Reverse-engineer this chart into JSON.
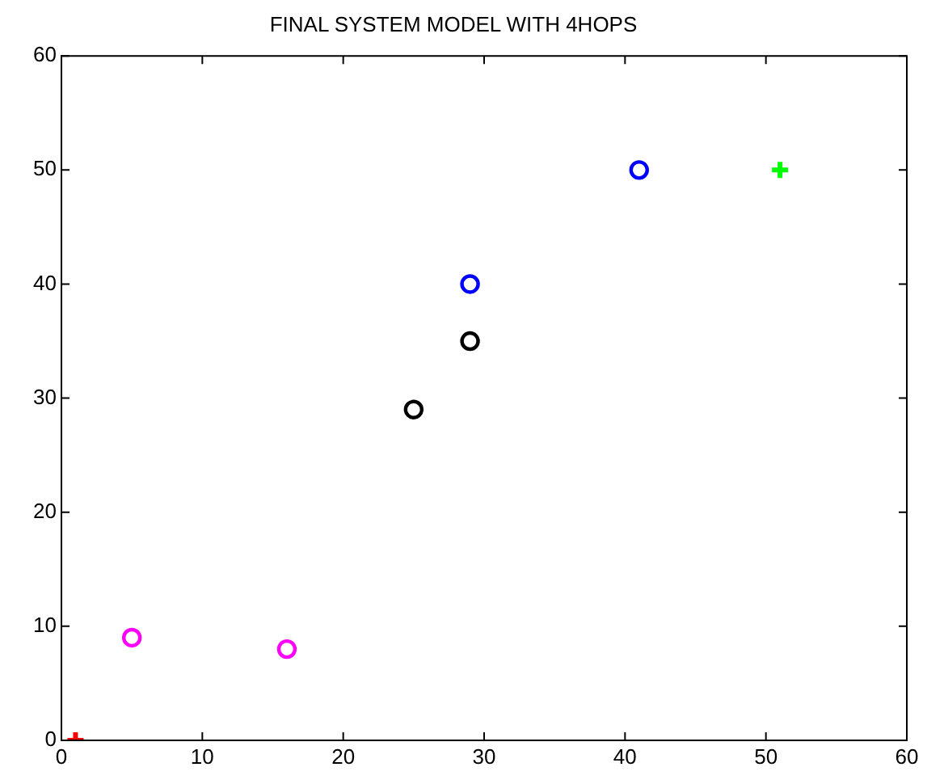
{
  "chart_data": {
    "type": "scatter",
    "title": "FINAL SYSTEM MODEL WITH 4HOPS",
    "xlim": [
      0,
      60
    ],
    "xticks": [
      0,
      10,
      20,
      30,
      40,
      50,
      60
    ],
    "ylim": [
      0,
      60
    ],
    "yticks": [
      0,
      10,
      20,
      30,
      40,
      50,
      60
    ],
    "grid": false,
    "legend": false,
    "series": [
      {
        "color": "#ff0000",
        "marker": "cross",
        "x": [
          1
        ],
        "values": [
          0
        ]
      },
      {
        "color": "#ff00ff",
        "marker": "circle",
        "x": [
          5,
          16
        ],
        "values": [
          9,
          8
        ]
      },
      {
        "color": "#000000",
        "marker": "circle",
        "x": [
          25,
          29
        ],
        "values": [
          29,
          35
        ]
      },
      {
        "color": "#0000ff",
        "marker": "circle",
        "x": [
          29,
          41
        ],
        "values": [
          40,
          50
        ]
      },
      {
        "color": "#00ff00",
        "marker": "cross",
        "x": [
          51
        ],
        "values": [
          50
        ]
      }
    ]
  }
}
